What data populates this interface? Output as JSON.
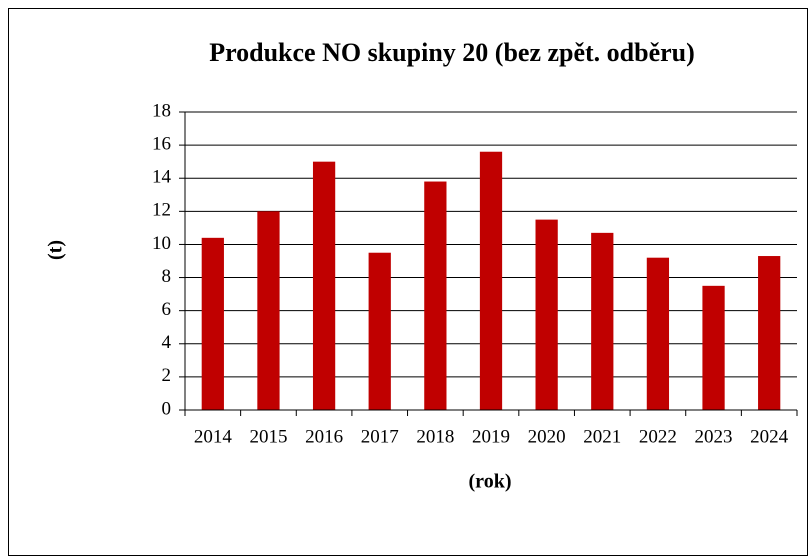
{
  "chart_data": {
    "type": "bar",
    "title": "Produkce NO skupiny 20 (bez zpět. odběru)",
    "x_label": "(rok)",
    "y_label": "(t)",
    "categories": [
      "2014",
      "2015",
      "2016",
      "2017",
      "2018",
      "2019",
      "2020",
      "2021",
      "2022",
      "2023",
      "2024"
    ],
    "values": [
      10.4,
      12.0,
      15.0,
      9.5,
      13.8,
      15.6,
      11.5,
      10.7,
      9.2,
      7.5,
      9.3
    ],
    "color": "#c00000",
    "ylim": [
      0,
      18
    ],
    "yticks": [
      0,
      2,
      4,
      6,
      8,
      10,
      12,
      14,
      16,
      18
    ],
    "grid": true
  }
}
